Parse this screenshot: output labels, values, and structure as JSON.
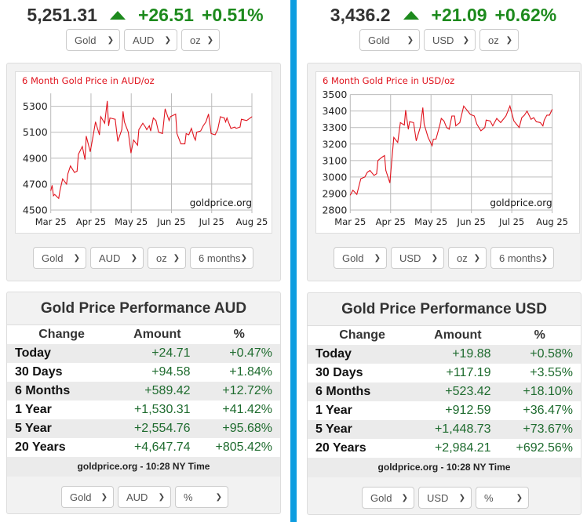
{
  "widgets": [
    {
      "price": "5,251.31",
      "change": "+26.51",
      "change_pct": "+0.51%",
      "selects": {
        "metal": "Gold",
        "currency": "AUD",
        "unit": "oz"
      },
      "chart_selects": {
        "metal": "Gold",
        "currency": "AUD",
        "unit": "oz",
        "range": "6 months"
      },
      "performance": {
        "title": "Gold Price Performance AUD",
        "headers": [
          "Change",
          "Amount",
          "%"
        ],
        "rows": [
          {
            "label": "Today",
            "amount": "+24.71",
            "pct": "+0.47%"
          },
          {
            "label": "30 Days",
            "amount": "+94.58",
            "pct": "+1.84%"
          },
          {
            "label": "6 Months",
            "amount": "+589.42",
            "pct": "+12.72%"
          },
          {
            "label": "1 Year",
            "amount": "+1,530.31",
            "pct": "+41.42%"
          },
          {
            "label": "5 Year",
            "amount": "+2,554.76",
            "pct": "+95.68%"
          },
          {
            "label": "20 Years",
            "amount": "+4,647.74",
            "pct": "+805.42%"
          }
        ],
        "footer": "goldprice.org - 10:28 NY Time",
        "selects": {
          "metal": "Gold",
          "currency": "AUD",
          "unit": "%"
        }
      }
    },
    {
      "price": "3,436.2",
      "change": "+21.09",
      "change_pct": "+0.62%",
      "selects": {
        "metal": "Gold",
        "currency": "USD",
        "unit": "oz"
      },
      "chart_selects": {
        "metal": "Gold",
        "currency": "USD",
        "unit": "oz",
        "range": "6 months"
      },
      "performance": {
        "title": "Gold Price Performance USD",
        "headers": [
          "Change",
          "Amount",
          "%"
        ],
        "rows": [
          {
            "label": "Today",
            "amount": "+19.88",
            "pct": "+0.58%"
          },
          {
            "label": "30 Days",
            "amount": "+117.19",
            "pct": "+3.55%"
          },
          {
            "label": "6 Months",
            "amount": "+523.42",
            "pct": "+18.10%"
          },
          {
            "label": "1 Year",
            "amount": "+912.59",
            "pct": "+36.47%"
          },
          {
            "label": "5 Year",
            "amount": "+1,448.73",
            "pct": "+73.67%"
          },
          {
            "label": "20 Years",
            "amount": "+2,984.21",
            "pct": "+692.56%"
          }
        ],
        "footer": "goldprice.org - 10:28 NY Time",
        "selects": {
          "metal": "Gold",
          "currency": "USD",
          "unit": "%"
        }
      }
    }
  ],
  "colors": {
    "up": "#1d8a1d",
    "line": "#e0141e",
    "divider": "#0d9de0",
    "amount": "#1e6b2e"
  },
  "icons": {
    "up": "triangle-up-icon",
    "dropdown": "chevron-down-icon"
  },
  "chart_data": [
    {
      "type": "line",
      "title": "6 Month Gold Price in AUD/oz",
      "watermark": "goldprice.org",
      "xlabels": [
        "Mar 25",
        "Apr 25",
        "May 25",
        "Jun 25",
        "Jul 25",
        "Aug 25"
      ],
      "xlim": [
        "2025-03-01",
        "2025-08-01"
      ],
      "ylim": [
        4500,
        5400
      ],
      "yticks": [
        4500,
        4700,
        4900,
        5100,
        5300
      ],
      "grid": true,
      "x": [
        "2025-03-01",
        "2025-03-02",
        "2025-03-03",
        "2025-03-04",
        "2025-03-07",
        "2025-03-08",
        "2025-03-10",
        "2025-03-13",
        "2025-03-14",
        "2025-03-16",
        "2025-03-19",
        "2025-03-21",
        "2025-03-22",
        "2025-03-25",
        "2025-03-27",
        "2025-03-28",
        "2025-03-31",
        "2025-04-02",
        "2025-04-04",
        "2025-04-07",
        "2025-04-08",
        "2025-04-11",
        "2025-04-13",
        "2025-04-14",
        "2025-04-15",
        "2025-04-19",
        "2025-04-21",
        "2025-04-24",
        "2025-04-25",
        "2025-04-26",
        "2025-04-29",
        "2025-05-01",
        "2025-05-03",
        "2025-05-06",
        "2025-05-07",
        "2025-05-10",
        "2025-05-12",
        "2025-05-13",
        "2025-05-15",
        "2025-05-16",
        "2025-05-18",
        "2025-05-20",
        "2025-05-22",
        "2025-05-25",
        "2025-05-27",
        "2025-05-30",
        "2025-05-31",
        "2025-06-04",
        "2025-06-05",
        "2025-06-08",
        "2025-06-11",
        "2025-06-12",
        "2025-06-14",
        "2025-06-16",
        "2025-06-18",
        "2025-06-19",
        "2025-06-20",
        "2025-06-23",
        "2025-06-25",
        "2025-06-27",
        "2025-06-29",
        "2025-07-01",
        "2025-07-04",
        "2025-07-06",
        "2025-07-08",
        "2025-07-11",
        "2025-07-12",
        "2025-07-13",
        "2025-07-16",
        "2025-07-19",
        "2025-07-20",
        "2025-07-23",
        "2025-07-24",
        "2025-07-28",
        "2025-08-01"
      ],
      "y": [
        4650,
        4690,
        4610,
        4620,
        4590,
        4650,
        4740,
        4700,
        4780,
        4840,
        4790,
        4800,
        4930,
        4990,
        4890,
        5070,
        4950,
        5060,
        5180,
        5080,
        5220,
        5170,
        5340,
        5150,
        5210,
        5200,
        5030,
        5120,
        5260,
        5180,
        5100,
        4940,
        5040,
        5000,
        5120,
        5170,
        5140,
        5120,
        5150,
        5110,
        5210,
        5190,
        5100,
        5090,
        5280,
        5190,
        5220,
        5240,
        5090,
        5010,
        5010,
        5090,
        5080,
        5130,
        5060,
        5040,
        5100,
        5110,
        5150,
        5180,
        5240,
        5090,
        5080,
        5120,
        5220,
        5210,
        5180,
        5210,
        5130,
        5140,
        5130,
        5140,
        5200,
        5190,
        5220
      ]
    },
    {
      "type": "line",
      "title": "6 Month Gold Price in USD/oz",
      "watermark": "goldprice.org",
      "xlabels": [
        "Mar 25",
        "Apr 25",
        "May 25",
        "Jun 25",
        "Jul 25",
        "Aug 25"
      ],
      "xlim": [
        "2025-03-01",
        "2025-08-01"
      ],
      "ylim": [
        2800,
        3500
      ],
      "yticks": [
        2800,
        2900,
        3000,
        3100,
        3200,
        3300,
        3400,
        3500
      ],
      "grid": true,
      "x": [
        "2025-03-01",
        "2025-03-03",
        "2025-03-06",
        "2025-03-09",
        "2025-03-12",
        "2025-03-14",
        "2025-03-16",
        "2025-03-19",
        "2025-03-21",
        "2025-03-22",
        "2025-03-25",
        "2025-03-27",
        "2025-03-28",
        "2025-03-31",
        "2025-04-03",
        "2025-04-06",
        "2025-04-08",
        "2025-04-11",
        "2025-04-12",
        "2025-04-14",
        "2025-04-15",
        "2025-04-18",
        "2025-04-20",
        "2025-04-23",
        "2025-04-25",
        "2025-04-26",
        "2025-04-29",
        "2025-05-02",
        "2025-05-03",
        "2025-05-05",
        "2025-05-08",
        "2025-05-09",
        "2025-05-11",
        "2025-05-13",
        "2025-05-15",
        "2025-05-17",
        "2025-05-19",
        "2025-05-20",
        "2025-05-23",
        "2025-05-26",
        "2025-05-31",
        "2025-06-03",
        "2025-06-05",
        "2025-06-08",
        "2025-06-11",
        "2025-06-12",
        "2025-06-15",
        "2025-06-17",
        "2025-06-20",
        "2025-06-23",
        "2025-06-27",
        "2025-06-30",
        "2025-07-03",
        "2025-07-05",
        "2025-07-07",
        "2025-07-09",
        "2025-07-11",
        "2025-07-13",
        "2025-07-16",
        "2025-07-18",
        "2025-07-20",
        "2025-07-23",
        "2025-07-25",
        "2025-07-26",
        "2025-07-28",
        "2025-07-30",
        "2025-08-01"
      ],
      "y": [
        2890,
        2920,
        2895,
        2990,
        3000,
        3030,
        3040,
        3010,
        3020,
        3100,
        3120,
        3130,
        3040,
        2965,
        3240,
        3210,
        3330,
        3315,
        3405,
        3290,
        3335,
        3330,
        3220,
        3300,
        3420,
        3320,
        3240,
        3190,
        3230,
        3230,
        3320,
        3355,
        3340,
        3300,
        3290,
        3370,
        3370,
        3310,
        3330,
        3430,
        3380,
        3370,
        3320,
        3280,
        3300,
        3345,
        3340,
        3310,
        3355,
        3330,
        3370,
        3430,
        3340,
        3320,
        3300,
        3360,
        3375,
        3400,
        3350,
        3360,
        3335,
        3330,
        3310,
        3345,
        3375,
        3375,
        3410
      ]
    }
  ]
}
